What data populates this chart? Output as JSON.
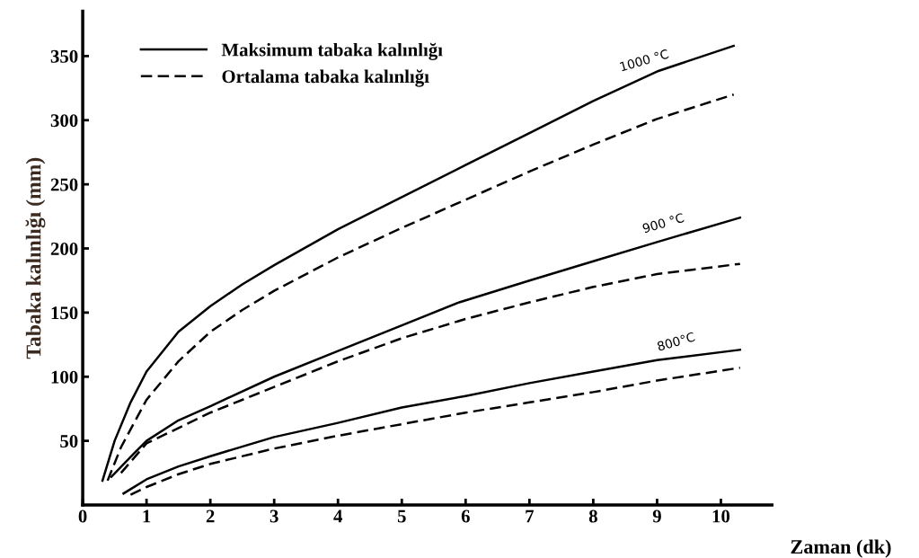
{
  "chart_data": {
    "type": "line",
    "xlabel": "Zaman (dk)",
    "ylabel": "Tabaka kalınlığı (mm)",
    "xlim": [
      0,
      10.8
    ],
    "ylim": [
      0,
      385
    ],
    "xticks": [
      0,
      1,
      2,
      3,
      4,
      5,
      6,
      7,
      8,
      9,
      10
    ],
    "yticks": [
      50,
      100,
      150,
      200,
      250,
      300,
      350
    ],
    "grid": false,
    "legend": "top left",
    "marker": "none",
    "series": [
      {
        "name": "Maksimum tabaka kalınlığı",
        "color": "#000000",
        "line_style": "solid",
        "x": [
          0.31,
          0.5,
          0.75,
          1,
          1.5,
          2,
          2.5,
          3,
          4,
          5,
          6,
          7,
          8,
          9,
          10.2
        ],
        "values": [
          19,
          50,
          80,
          104,
          135,
          155,
          172,
          187,
          215,
          240,
          265,
          290,
          315,
          338,
          358
        ]
      },
      {
        "name": "Ortalama tabaka kalınlığı",
        "color": "#000000",
        "line_style": "dashed",
        "x": [
          0.39,
          0.6,
          1,
          1.5,
          2,
          2.5,
          3,
          4,
          5,
          6,
          7,
          8,
          9,
          10.2
        ],
        "values": [
          19,
          45,
          82,
          112,
          135,
          152,
          167,
          193,
          216,
          238,
          260,
          281,
          301,
          320
        ]
      },
      {
        "color": "#000000",
        "line_style": "solid",
        "x": [
          0.45,
          0.8,
          1,
          1.5,
          2,
          3,
          4,
          5,
          5.9,
          7,
          8,
          9,
          10.3
        ],
        "values": [
          22,
          40,
          50,
          66,
          77,
          100,
          120,
          140,
          158,
          175,
          190,
          205,
          224
        ]
      },
      {
        "color": "#000000",
        "line_style": "dashed",
        "x": [
          0.6,
          1,
          1.5,
          2,
          3,
          4,
          5,
          6,
          7,
          8,
          9,
          10.3
        ],
        "values": [
          25,
          48,
          60,
          72,
          92,
          112,
          130,
          145,
          158,
          170,
          180,
          188
        ]
      },
      {
        "color": "#000000",
        "line_style": "solid",
        "x": [
          0.64,
          1,
          1.5,
          2,
          3,
          4,
          5,
          6,
          7,
          8,
          9,
          10.3
        ],
        "values": [
          9,
          20,
          30,
          38,
          53,
          64,
          76,
          85,
          95,
          104,
          113,
          121
        ]
      },
      {
        "color": "#000000",
        "line_style": "dashed",
        "x": [
          0.75,
          1,
          1.5,
          2,
          3,
          4,
          5,
          6,
          7,
          8,
          9,
          10.3
        ],
        "values": [
          8,
          14,
          24,
          32,
          44,
          54,
          63,
          72,
          80,
          88,
          97,
          107
        ]
      }
    ],
    "annotations": [
      {
        "text": "1000 °C",
        "x": 8.8,
        "y": 333
      },
      {
        "text": "900 °C",
        "x": 9.1,
        "y": 207
      },
      {
        "text": "800°C",
        "x": 9.3,
        "y": 115
      }
    ]
  }
}
